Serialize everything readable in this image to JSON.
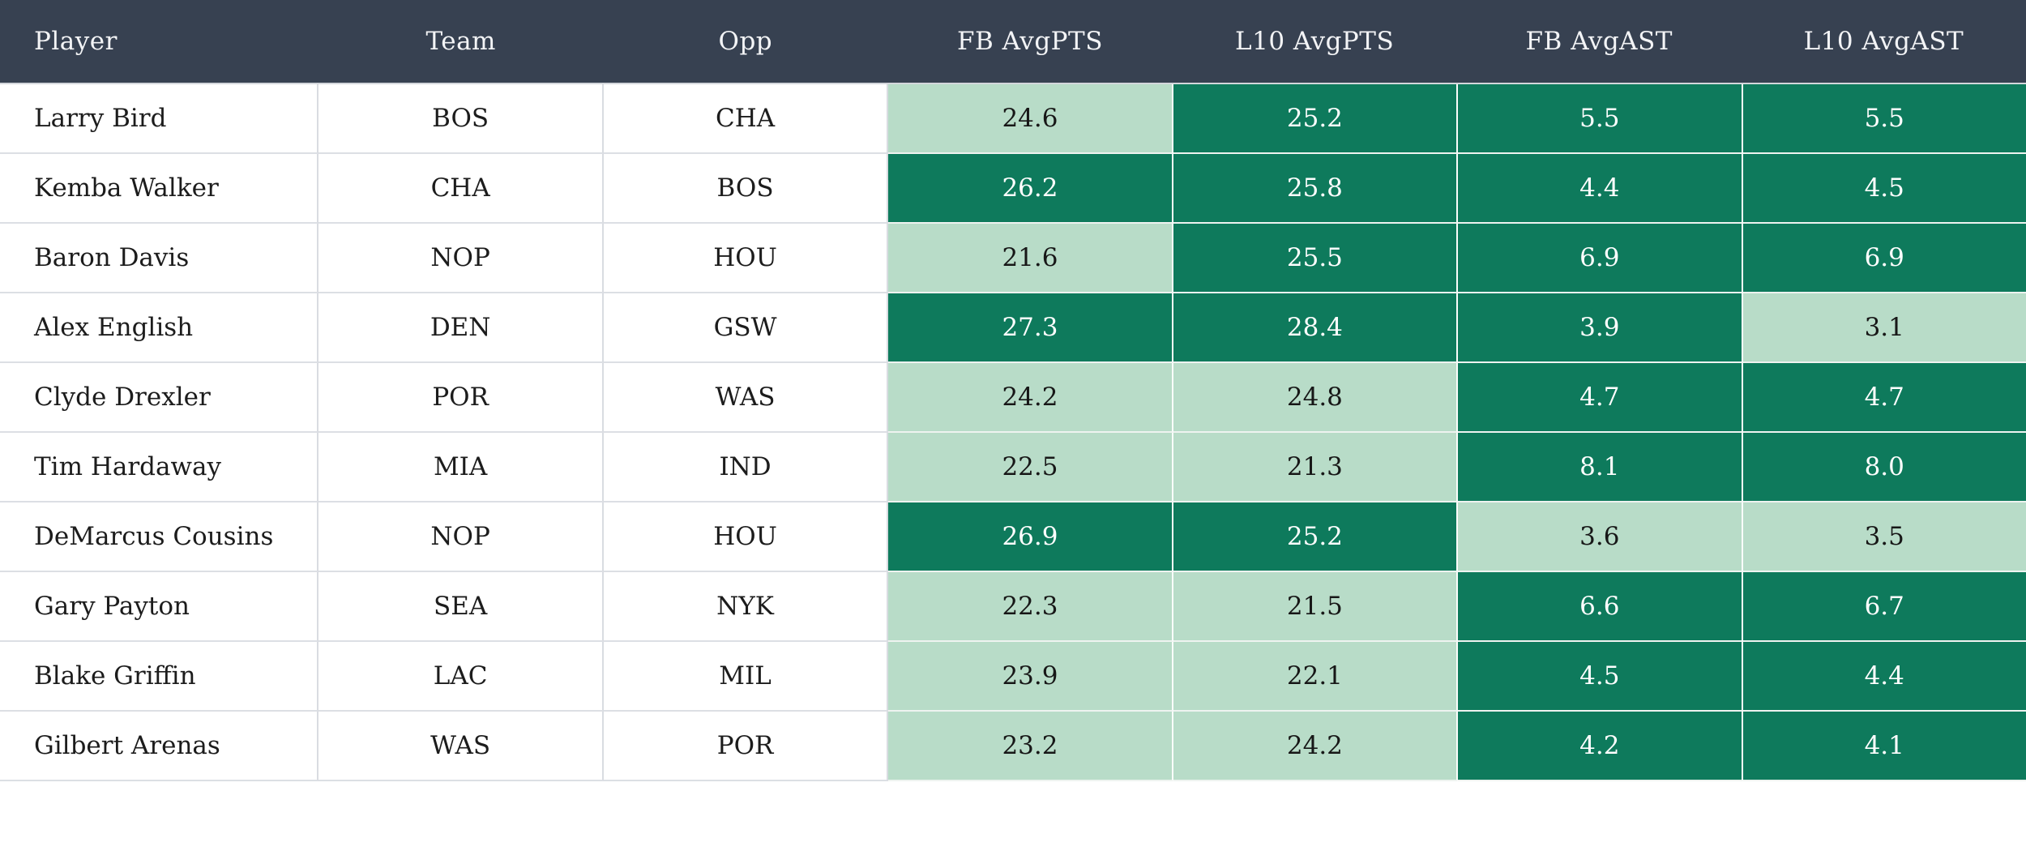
{
  "colors": {
    "header_bg": "#374151",
    "header_text": "#f3f4f6",
    "stat_high_bg": "#0e7a5c",
    "stat_high_text": "#ffffff",
    "stat_low_bg": "#b8dcc8",
    "stat_low_text": "#171717",
    "grid_line": "#d9dce1"
  },
  "table": {
    "columns": [
      {
        "key": "player",
        "label": "Player"
      },
      {
        "key": "team",
        "label": "Team"
      },
      {
        "key": "opp",
        "label": "Opp"
      },
      {
        "key": "fb_avgpts",
        "label": "FB AvgPTS"
      },
      {
        "key": "l10_avgpts",
        "label": "L10 AvgPTS"
      },
      {
        "key": "fb_avgast",
        "label": "FB AvgAST"
      },
      {
        "key": "l10_avgast",
        "label": "L10 AvgAST"
      }
    ],
    "rows": [
      {
        "player": "Larry Bird",
        "team": "BOS",
        "opp": "CHA",
        "stats": {
          "fb_avgpts": {
            "value": "24.6",
            "shade": "light"
          },
          "l10_avgpts": {
            "value": "25.2",
            "shade": "dark"
          },
          "fb_avgast": {
            "value": "5.5",
            "shade": "dark"
          },
          "l10_avgast": {
            "value": "5.5",
            "shade": "dark"
          }
        }
      },
      {
        "player": "Kemba Walker",
        "team": "CHA",
        "opp": "BOS",
        "stats": {
          "fb_avgpts": {
            "value": "26.2",
            "shade": "dark"
          },
          "l10_avgpts": {
            "value": "25.8",
            "shade": "dark"
          },
          "fb_avgast": {
            "value": "4.4",
            "shade": "dark"
          },
          "l10_avgast": {
            "value": "4.5",
            "shade": "dark"
          }
        }
      },
      {
        "player": "Baron Davis",
        "team": "NOP",
        "opp": "HOU",
        "stats": {
          "fb_avgpts": {
            "value": "21.6",
            "shade": "light"
          },
          "l10_avgpts": {
            "value": "25.5",
            "shade": "dark"
          },
          "fb_avgast": {
            "value": "6.9",
            "shade": "dark"
          },
          "l10_avgast": {
            "value": "6.9",
            "shade": "dark"
          }
        }
      },
      {
        "player": "Alex English",
        "team": "DEN",
        "opp": "GSW",
        "stats": {
          "fb_avgpts": {
            "value": "27.3",
            "shade": "dark"
          },
          "l10_avgpts": {
            "value": "28.4",
            "shade": "dark"
          },
          "fb_avgast": {
            "value": "3.9",
            "shade": "dark"
          },
          "l10_avgast": {
            "value": "3.1",
            "shade": "light"
          }
        }
      },
      {
        "player": "Clyde Drexler",
        "team": "POR",
        "opp": "WAS",
        "stats": {
          "fb_avgpts": {
            "value": "24.2",
            "shade": "light"
          },
          "l10_avgpts": {
            "value": "24.8",
            "shade": "light"
          },
          "fb_avgast": {
            "value": "4.7",
            "shade": "dark"
          },
          "l10_avgast": {
            "value": "4.7",
            "shade": "dark"
          }
        }
      },
      {
        "player": "Tim Hardaway",
        "team": "MIA",
        "opp": "IND",
        "stats": {
          "fb_avgpts": {
            "value": "22.5",
            "shade": "light"
          },
          "l10_avgpts": {
            "value": "21.3",
            "shade": "light"
          },
          "fb_avgast": {
            "value": "8.1",
            "shade": "dark"
          },
          "l10_avgast": {
            "value": "8.0",
            "shade": "dark"
          }
        }
      },
      {
        "player": "DeMarcus Cousins",
        "team": "NOP",
        "opp": "HOU",
        "stats": {
          "fb_avgpts": {
            "value": "26.9",
            "shade": "dark"
          },
          "l10_avgpts": {
            "value": "25.2",
            "shade": "dark"
          },
          "fb_avgast": {
            "value": "3.6",
            "shade": "light"
          },
          "l10_avgast": {
            "value": "3.5",
            "shade": "light"
          }
        }
      },
      {
        "player": "Gary Payton",
        "team": "SEA",
        "opp": "NYK",
        "stats": {
          "fb_avgpts": {
            "value": "22.3",
            "shade": "light"
          },
          "l10_avgpts": {
            "value": "21.5",
            "shade": "light"
          },
          "fb_avgast": {
            "value": "6.6",
            "shade": "dark"
          },
          "l10_avgast": {
            "value": "6.7",
            "shade": "dark"
          }
        }
      },
      {
        "player": "Blake Griffin",
        "team": "LAC",
        "opp": "MIL",
        "stats": {
          "fb_avgpts": {
            "value": "23.9",
            "shade": "light"
          },
          "l10_avgpts": {
            "value": "22.1",
            "shade": "light"
          },
          "fb_avgast": {
            "value": "4.5",
            "shade": "dark"
          },
          "l10_avgast": {
            "value": "4.4",
            "shade": "dark"
          }
        }
      },
      {
        "player": "Gilbert Arenas",
        "team": "WAS",
        "opp": "POR",
        "stats": {
          "fb_avgpts": {
            "value": "23.2",
            "shade": "light"
          },
          "l10_avgpts": {
            "value": "24.2",
            "shade": "light"
          },
          "fb_avgast": {
            "value": "4.2",
            "shade": "dark"
          },
          "l10_avgast": {
            "value": "4.1",
            "shade": "dark"
          }
        }
      }
    ]
  }
}
